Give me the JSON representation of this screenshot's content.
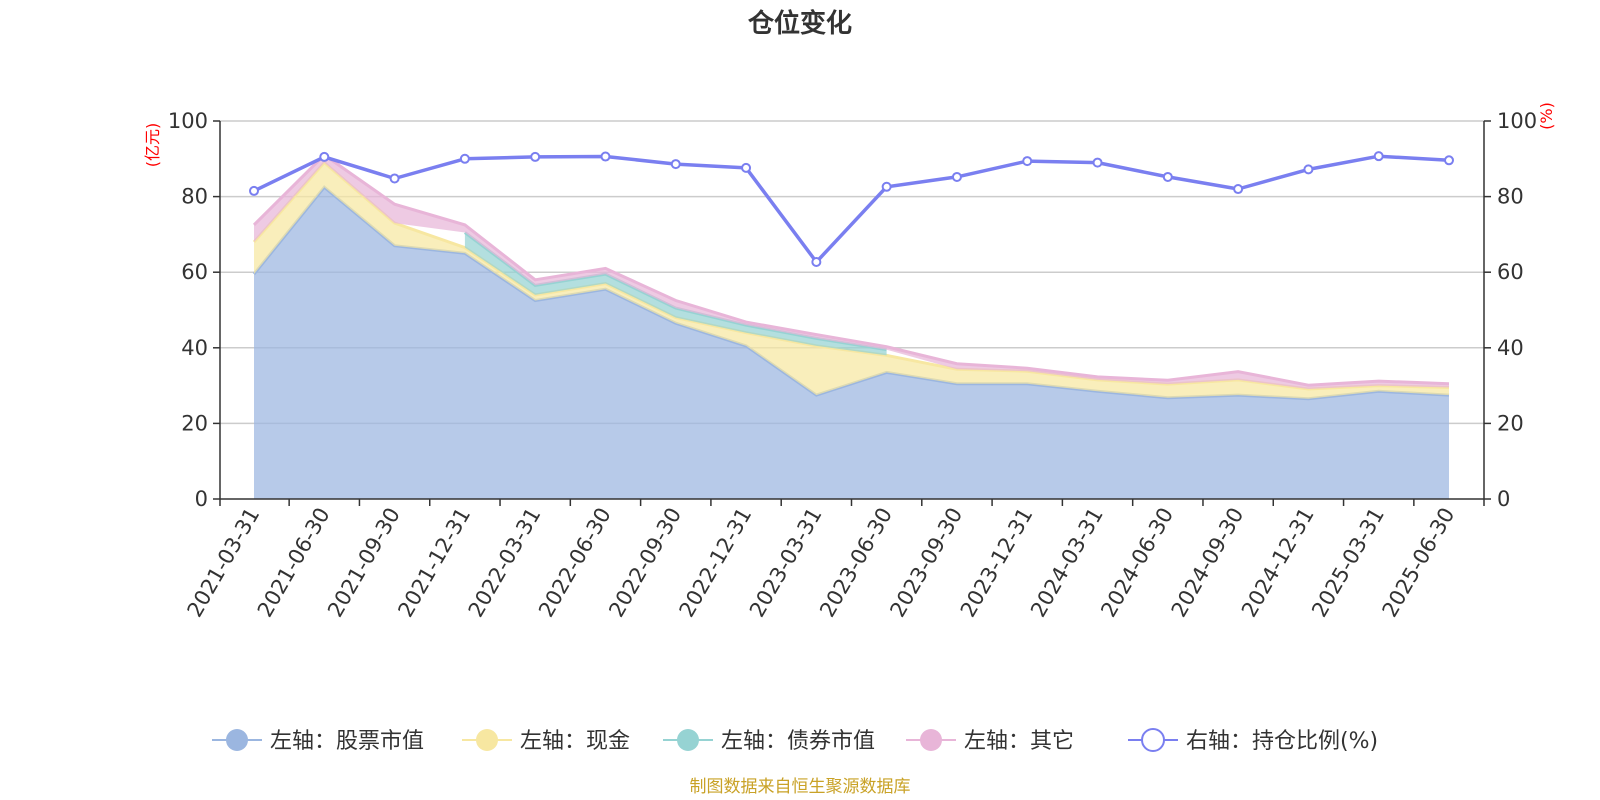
{
  "chart_data": {
    "type": "area",
    "title": "仓位变化",
    "categories": [
      "2021-03-31",
      "2021-06-30",
      "2021-09-30",
      "2021-12-31",
      "2022-03-31",
      "2022-06-30",
      "2022-09-30",
      "2022-12-31",
      "2023-03-31",
      "2023-06-30",
      "2023-09-30",
      "2023-12-31",
      "2024-03-31",
      "2024-06-30",
      "2024-09-30",
      "2024-12-31",
      "2025-03-31",
      "2025-06-30"
    ],
    "left_axis": {
      "unit": "(亿元)",
      "ylim": [
        0,
        100
      ],
      "ticks": [
        0,
        20,
        40,
        60,
        80,
        100
      ]
    },
    "right_axis": {
      "unit": "(%)",
      "ylim": [
        0,
        100
      ],
      "ticks": [
        0,
        20,
        40,
        60,
        80,
        100
      ]
    },
    "series": [
      {
        "name": "左轴：股票市值",
        "axis": "left",
        "kind": "stacked-area",
        "color": "#9bb6e0",
        "values": [
          59.5,
          82.5,
          67.0,
          65.0,
          52.5,
          55.5,
          46.5,
          40.5,
          27.5,
          33.5,
          30.5,
          30.5,
          28.5,
          26.8,
          27.5,
          26.5,
          28.5,
          27.5
        ]
      },
      {
        "name": "左轴：现金",
        "axis": "left",
        "kind": "stacked-area",
        "color": "#f7e7a1",
        "values": [
          8.5,
          6.5,
          6.0,
          1.5,
          1.5,
          1.5,
          1.5,
          3.5,
          13.0,
          4.5,
          3.8,
          3.3,
          3.0,
          3.6,
          4.0,
          2.6,
          1.5,
          2.0
        ]
      },
      {
        "name": "左轴：债券市值",
        "axis": "left",
        "kind": "stacked-area",
        "color": "#96d3d3",
        "values": [
          0,
          0,
          0,
          4.0,
          2.5,
          2.5,
          2.5,
          2.0,
          2.0,
          1.5,
          0,
          0,
          0,
          0,
          0,
          0,
          0,
          0
        ]
      },
      {
        "name": "左轴：其它",
        "axis": "left",
        "kind": "stacked-area",
        "color": "#e8b5d8",
        "values": [
          4.5,
          2.0,
          5.0,
          2.0,
          1.5,
          1.5,
          2.0,
          0.8,
          1.0,
          0.8,
          1.5,
          0.8,
          0.8,
          1.0,
          2.2,
          1.0,
          1.2,
          1.0
        ]
      },
      {
        "name": "右轴：持仓比例(%)",
        "axis": "right",
        "kind": "line",
        "color": "#7a7ff0",
        "values": [
          81.5,
          90.5,
          84.8,
          90.0,
          90.5,
          90.6,
          88.6,
          87.6,
          62.7,
          82.6,
          85.2,
          89.4,
          89.0,
          85.2,
          82.0,
          87.2,
          90.7,
          89.6
        ]
      }
    ],
    "grid": true,
    "legend_position": "bottom",
    "source": "制图数据来自恒生聚源数据库"
  }
}
